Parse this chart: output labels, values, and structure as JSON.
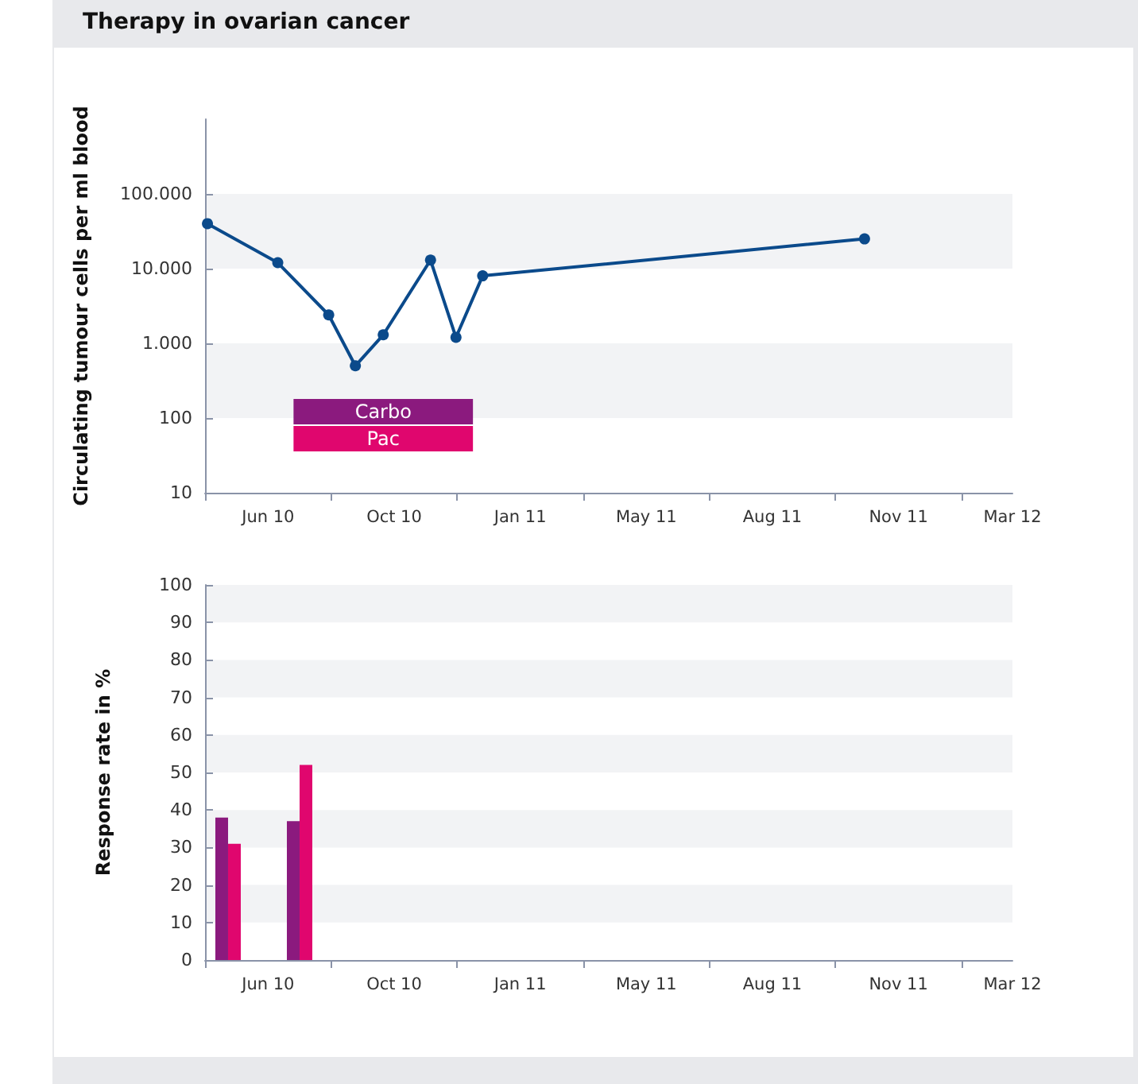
{
  "chart_data": [
    {
      "type": "line",
      "title": "Therapy in ovarian cancer",
      "ylabel": "Circulating tumour cells per ml blood",
      "x": [
        "2010-05-07",
        "2010-07-04",
        "2010-08-15",
        "2010-09-06",
        "2010-09-29",
        "2010-11-07",
        "2010-11-28",
        "2010-12-20",
        "2011-10-31"
      ],
      "series": [
        {
          "color": "#0b4a8b",
          "values": [
            40000,
            12000,
            2400,
            500,
            1300,
            13000,
            1200,
            8000,
            25000
          ]
        }
      ],
      "log": "y",
      "xlim": [
        "2010-05-05",
        "2012-03-01"
      ],
      "xticks": [
        {
          "value": "2010-05-05",
          "label": null
        },
        {
          "value": "2010-06-26",
          "label": "Jun 10"
        },
        {
          "value": "2010-08-17",
          "label": null
        },
        {
          "value": "2010-10-08",
          "label": "Oct 10"
        },
        {
          "value": "2010-11-29",
          "label": null
        },
        {
          "value": "2011-01-20",
          "label": "Jan 11"
        },
        {
          "value": "2011-03-13",
          "label": null
        },
        {
          "value": "2011-05-04",
          "label": "May 11"
        },
        {
          "value": "2011-06-25",
          "label": null
        },
        {
          "value": "2011-08-16",
          "label": "Aug 11"
        },
        {
          "value": "2011-10-07",
          "label": null
        },
        {
          "value": "2011-11-28",
          "label": "Nov 11"
        },
        {
          "value": "2012-01-19",
          "label": null
        },
        {
          "value": "2012-03-01",
          "label": "Mar 12"
        }
      ],
      "ylim": [
        10,
        1000000
      ],
      "yticks": [
        10,
        100,
        {
          "value": 1000,
          "label": "1.000"
        },
        {
          "value": 10000,
          "label": "10.000"
        },
        {
          "value": 100000,
          "label": "100.000"
        }
      ],
      "marker": "circle",
      "line_style": "solid",
      "bands": [
        {
          "axis": "y",
          "from": 10000,
          "to": 100000,
          "color": "#f2f3f5"
        },
        {
          "axis": "y",
          "from": 100,
          "to": 1000,
          "color": "#f2f3f5"
        },
        {
          "axis": "x",
          "from": "2010-07-17",
          "to": "2010-12-12",
          "label": "Carbo",
          "color": "#8b1a7e"
        },
        {
          "axis": "x",
          "from": "2010-07-17",
          "to": "2010-12-12",
          "label": "Pac",
          "color": "#e0066e"
        }
      ]
    },
    {
      "type": "bar",
      "ylabel": "Response rate in %",
      "x": [
        "2010-05-24",
        "2010-07-22"
      ],
      "series": [
        {
          "color": "#8b1a7e",
          "values": [
            38,
            37
          ]
        },
        {
          "color": "#e0066e",
          "values": [
            31,
            52
          ]
        }
      ],
      "xlim": [
        "2010-05-05",
        "2012-03-01"
      ],
      "xticks": [
        {
          "value": "2010-05-05",
          "label": null
        },
        {
          "value": "2010-06-26",
          "label": "Jun 10"
        },
        {
          "value": "2010-08-17",
          "label": null
        },
        {
          "value": "2010-10-08",
          "label": "Oct 10"
        },
        {
          "value": "2010-11-29",
          "label": null
        },
        {
          "value": "2011-01-20",
          "label": "Jan 11"
        },
        {
          "value": "2011-03-13",
          "label": null
        },
        {
          "value": "2011-05-04",
          "label": "May 11"
        },
        {
          "value": "2011-06-25",
          "label": null
        },
        {
          "value": "2011-08-16",
          "label": "Aug 11"
        },
        {
          "value": "2011-10-07",
          "label": null
        },
        {
          "value": "2011-11-28",
          "label": "Nov 11"
        },
        {
          "value": "2012-01-19",
          "label": null
        },
        {
          "value": "2012-03-01",
          "label": "Mar 12"
        }
      ],
      "ylim": [
        0,
        100
      ],
      "yticks": [
        0,
        10,
        20,
        30,
        40,
        50,
        60,
        70,
        80,
        90,
        100
      ],
      "bands": [
        {
          "axis": "y",
          "from": 10,
          "to": 20,
          "color": "#f2f3f5"
        },
        {
          "axis": "y",
          "from": 30,
          "to": 40,
          "color": "#f2f3f5"
        },
        {
          "axis": "y",
          "from": 50,
          "to": 60,
          "color": "#f2f3f5"
        },
        {
          "axis": "y",
          "from": 70,
          "to": 80,
          "color": "#f2f3f5"
        },
        {
          "axis": "y",
          "from": 90,
          "to": 100,
          "color": "#f2f3f5"
        }
      ]
    }
  ]
}
